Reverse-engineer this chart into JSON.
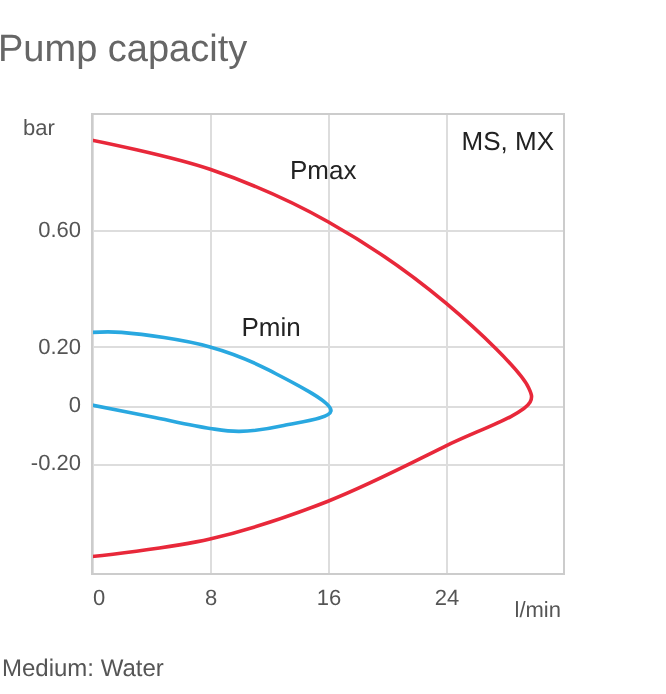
{
  "chart_data": {
    "type": "line",
    "title": "Pump capacity",
    "xlabel": "l/min",
    "ylabel": "bar",
    "xlim": [
      0,
      32
    ],
    "xticks": [
      0,
      8,
      16,
      24
    ],
    "ylim": [
      -0.58,
      1.0
    ],
    "yticks": [
      {
        "value": 0.6,
        "label": "0.60"
      },
      {
        "value": 0.2,
        "label": "0.20"
      },
      0,
      {
        "value": -0.2,
        "label": "-0.20"
      }
    ],
    "grid": true,
    "series": [
      {
        "name": "Pmax",
        "color": "#e8283a",
        "x": [
          0,
          8,
          16,
          24,
          29.6,
          29.7,
          24,
          16,
          8,
          0
        ],
        "values": [
          0.91,
          0.81,
          0.63,
          0.35,
          0.06,
          0.01,
          -0.14,
          -0.33,
          -0.46,
          -0.52
        ]
      },
      {
        "name": "Pmin",
        "color": "#29a8e0",
        "x": [
          0,
          2,
          8,
          12,
          16.2,
          13,
          10,
          8,
          4,
          0
        ],
        "values": [
          0.25,
          0.25,
          0.2,
          0.12,
          -0.02,
          -0.07,
          -0.09,
          -0.08,
          -0.04,
          0
        ]
      }
    ],
    "annotations": [
      "MS, MX",
      "Medium: Water"
    ]
  }
}
